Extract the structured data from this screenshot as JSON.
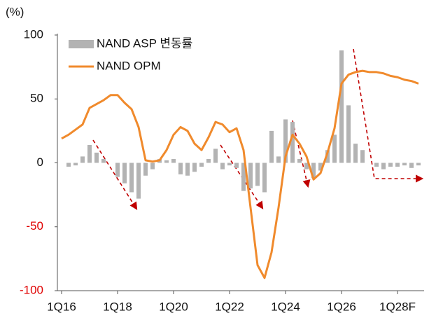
{
  "chart_data": {
    "type": "bar_line",
    "y_label": "(%)",
    "categories": [
      "1Q16",
      null,
      null,
      null,
      null,
      null,
      null,
      null,
      "1Q18",
      null,
      null,
      null,
      null,
      null,
      null,
      null,
      "1Q20",
      null,
      null,
      null,
      null,
      null,
      null,
      null,
      "1Q22",
      null,
      null,
      null,
      null,
      null,
      null,
      null,
      "1Q24",
      null,
      null,
      null,
      null,
      null,
      null,
      null,
      "1Q26",
      null,
      null,
      null,
      null,
      null,
      null,
      null,
      "1Q28F",
      null,
      null,
      null
    ],
    "series": [
      {
        "name": "NAND ASP 변동률",
        "type": "bar",
        "color": "#b3b3b3",
        "values": [
          0,
          -3,
          -2,
          5,
          14,
          8,
          3,
          0,
          -11,
          -16,
          -23,
          -28,
          -10,
          -5,
          3,
          2,
          3,
          -9,
          -10,
          -7,
          -3,
          3,
          11,
          -5,
          -2,
          -4,
          -22,
          -20,
          -18,
          -23,
          25,
          5,
          34,
          32,
          3,
          -5,
          -12,
          -6,
          10,
          22,
          88,
          45,
          15,
          10,
          0,
          -3,
          -5,
          -3,
          -3,
          -2,
          -4,
          -2
        ]
      },
      {
        "name": "NAND OPM",
        "type": "line",
        "color": "#f08a2c",
        "values": [
          19,
          22,
          26,
          30,
          43,
          46,
          49,
          53,
          53,
          47,
          42,
          28,
          2,
          1,
          2,
          10,
          22,
          28,
          25,
          15,
          10,
          20,
          32,
          30,
          24,
          27,
          10,
          -35,
          -80,
          -90,
          -70,
          -35,
          5,
          22,
          15,
          5,
          -13,
          -8,
          8,
          27,
          62,
          69,
          71,
          72,
          71,
          71,
          70,
          68,
          67,
          65,
          64,
          62
        ]
      }
    ],
    "ylim": [
      -100,
      100
    ],
    "yticks": [
      100,
      50,
      0,
      -50,
      -100
    ],
    "negative_tick_color": "#e00000",
    "legend": "upper left"
  }
}
